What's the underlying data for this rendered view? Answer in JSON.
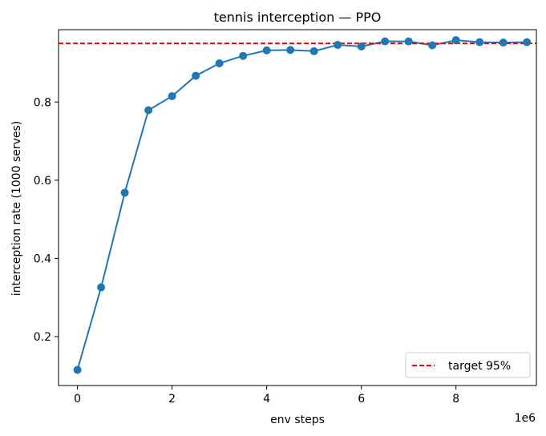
{
  "chart_data": {
    "type": "line",
    "title": "tennis interception — PPO",
    "xlabel": "env steps",
    "ylabel": "interception rate (1000 serves)",
    "x_offset_label": "1e6",
    "x_scale": 1000000,
    "xlim": [
      -400000,
      9700000
    ],
    "ylim": [
      0.075,
      0.985
    ],
    "xticks": [
      0,
      2,
      4,
      6,
      8
    ],
    "yticks": [
      0.2,
      0.4,
      0.6,
      0.8
    ],
    "grid": false,
    "legend_position": "lower-right",
    "series": [
      {
        "name": "",
        "color": "#1f77b4",
        "marker": "circle",
        "x": [
          0,
          500000,
          1000000,
          1500000,
          2000000,
          2500000,
          3000000,
          3500000,
          4000000,
          4500000,
          5000000,
          5500000,
          6000000,
          6500000,
          7000000,
          7500000,
          8000000,
          8500000,
          9000000,
          9500000
        ],
        "y": [
          0.115,
          0.326,
          0.568,
          0.779,
          0.815,
          0.867,
          0.899,
          0.918,
          0.932,
          0.933,
          0.93,
          0.946,
          0.942,
          0.955,
          0.955,
          0.945,
          0.958,
          0.953,
          0.952,
          0.953
        ]
      }
    ],
    "reference_lines": [
      {
        "name": "target 95%",
        "y": 0.95,
        "color": "#ff0000",
        "style": "dashed"
      }
    ]
  }
}
